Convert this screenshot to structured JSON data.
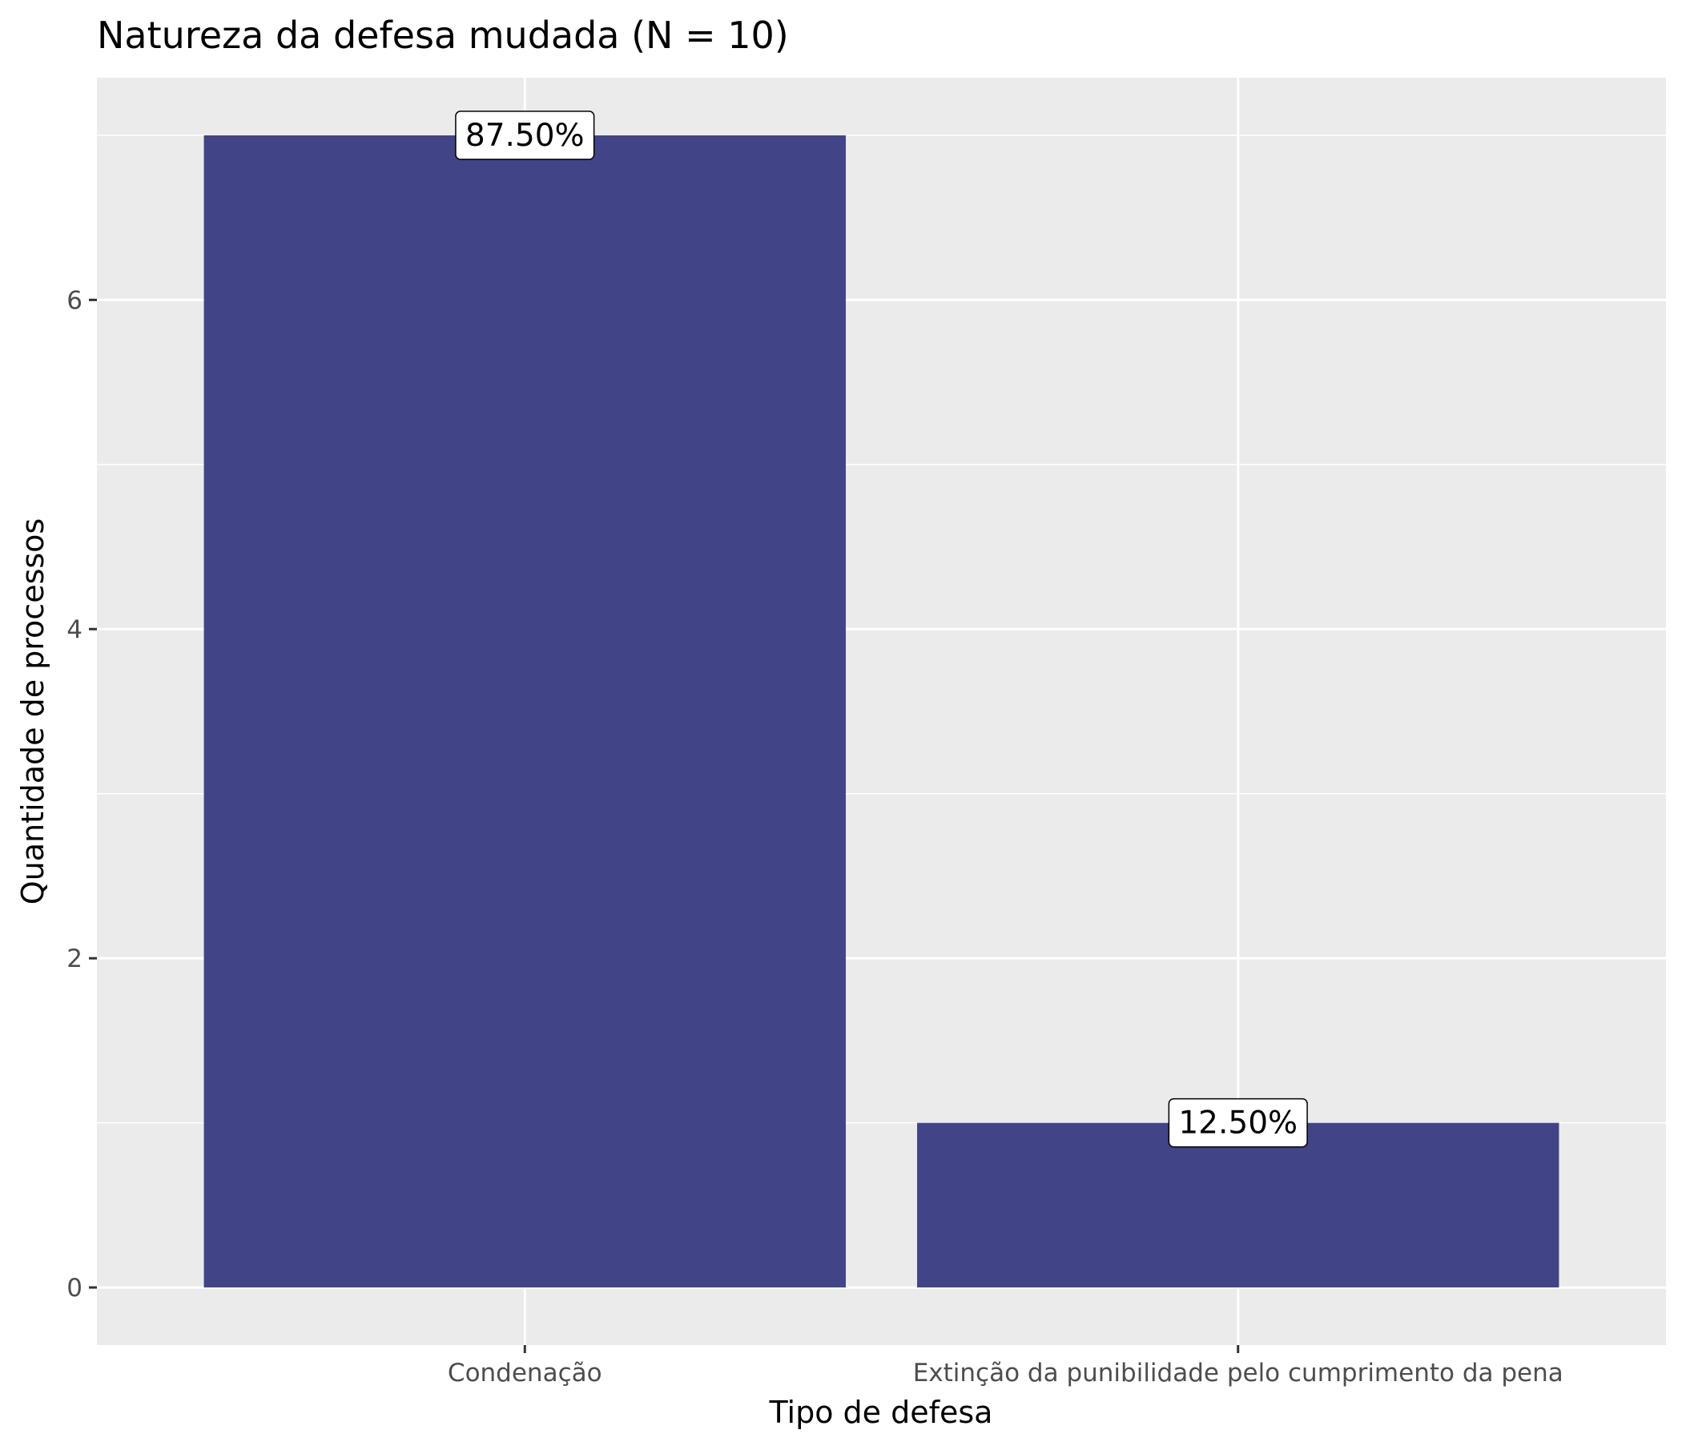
{
  "chart_data": {
    "type": "bar",
    "title": "Natureza da defesa mudada (N = 10)",
    "xlabel": "Tipo de defesa",
    "ylabel": "Quantidade de processos",
    "categories": [
      "Condenação",
      "Extinção da punibilidade pelo cumprimento da pena"
    ],
    "values": [
      7,
      1
    ],
    "data_labels": [
      "87.50%",
      "12.50%"
    ],
    "yticks": [
      0,
      2,
      4,
      6
    ],
    "ylim": [
      -0.35,
      7.35
    ],
    "grid": true,
    "legend": "none",
    "colors": {
      "bar": "#414487",
      "panel": "#ebebeb",
      "grid": "#ffffff",
      "label_box": "#ffffff",
      "tick": "#333333"
    }
  }
}
